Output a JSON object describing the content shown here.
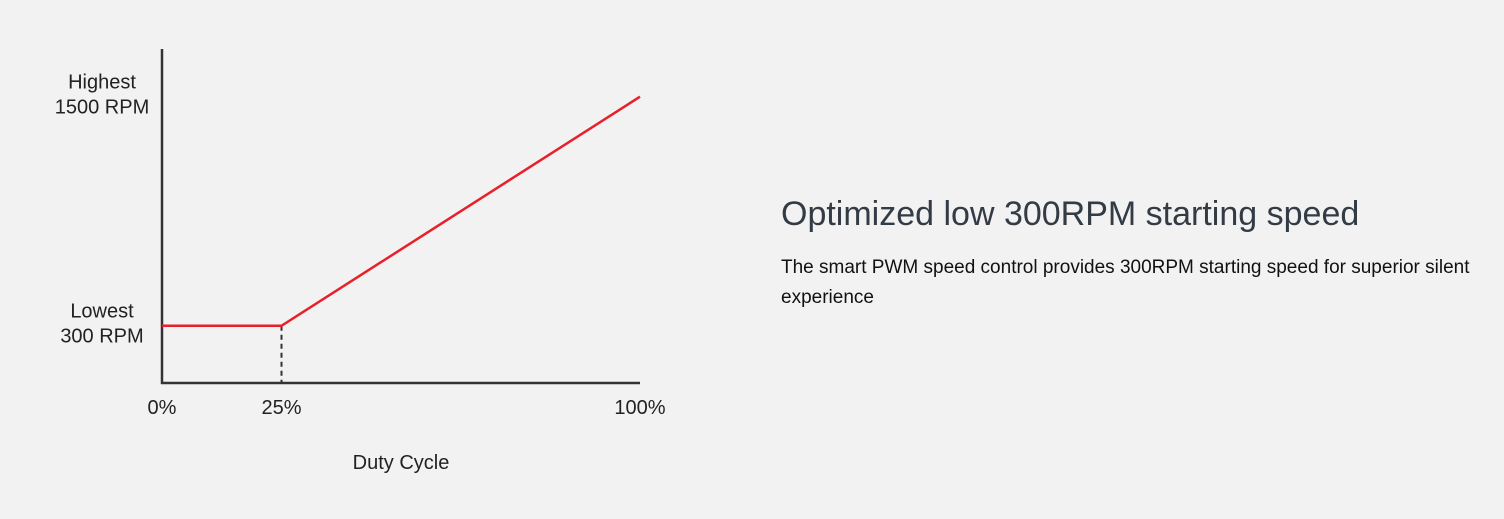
{
  "chart_data": {
    "type": "line",
    "xlabel": "Duty Cycle",
    "x_tick_labels": [
      "0%",
      "25%",
      "100%"
    ],
    "x_ticks": [
      0,
      25,
      100
    ],
    "y_tick_labels": [
      {
        "value": 1500,
        "lines": [
          "Highest",
          "1500 RPM"
        ]
      },
      {
        "value": 300,
        "lines": [
          "Lowest",
          "300 RPM"
        ]
      }
    ],
    "xlim": [
      0,
      100
    ],
    "ylim": [
      0,
      1750
    ],
    "series": [
      {
        "x": [
          0,
          25,
          100
        ],
        "y": [
          300,
          300,
          1500
        ],
        "color": "#e8202a"
      }
    ],
    "reference_lines": [
      {
        "x": 25,
        "y_from": 0,
        "y_to": 300,
        "style": "dashed",
        "color": "#333333"
      }
    ],
    "grid": false,
    "legend": "none",
    "axis_color": "#333333"
  },
  "feature": {
    "title": "Optimized low 300RPM starting speed",
    "description": "The smart PWM speed control provides 300RPM starting speed for superior silent experience"
  }
}
